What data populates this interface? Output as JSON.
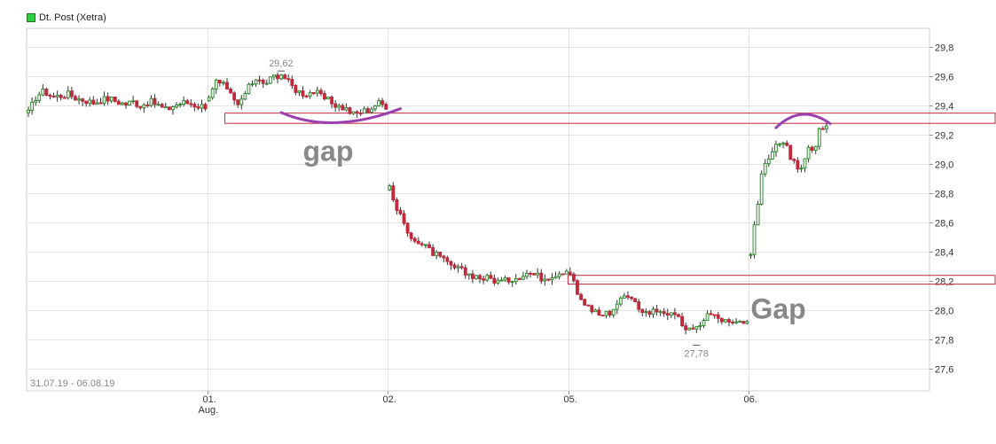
{
  "legend": {
    "label": "Dt. Post (Xetra)",
    "swatch_color": "#2ecc40"
  },
  "date_range": "31.07.19 - 06.08.19",
  "annotations": {
    "gap_upper": "gap",
    "gap_lower": "Gap",
    "high_label": "29,62",
    "low_label": "27,78"
  },
  "colors": {
    "up_candle": "#2e8b2e",
    "down_candle": "#c0283c",
    "gap_box": "#c0283c",
    "arc": "#9b3fb0",
    "grid": "#e4e4e4",
    "axis_text": "#333333",
    "annotation_text": "#888888"
  },
  "chart_data": {
    "type": "candlestick",
    "title": "",
    "ylim": [
      27.45,
      29.93
    ],
    "y_ticks": [
      "29,8",
      "29,6",
      "29,4",
      "29,2",
      "29,0",
      "28,8",
      "28,6",
      "28,4",
      "28,2",
      "28,0",
      "27,8",
      "27,6"
    ],
    "y_tick_values": [
      29.8,
      29.6,
      29.4,
      29.2,
      29.0,
      28.8,
      28.6,
      28.4,
      28.2,
      28.0,
      27.8,
      27.6
    ],
    "x_ticks": [
      {
        "label": "01.",
        "sublabel": "Aug.",
        "index": 50
      },
      {
        "label": "02.",
        "sublabel": "",
        "index": 100
      },
      {
        "label": "05.",
        "sublabel": "",
        "index": 150
      },
      {
        "label": "06.",
        "sublabel": "",
        "index": 200
      }
    ],
    "total_slots": 250,
    "grid": true,
    "legend_position": "top-left",
    "high": {
      "value": 29.62,
      "index": 70,
      "label": "29,62"
    },
    "low": {
      "value": 27.78,
      "index": 185,
      "label": "27,78"
    },
    "gap_zones": [
      {
        "from": 29.28,
        "to": 29.35,
        "start_index": 55
      },
      {
        "from": 28.18,
        "to": 28.24,
        "start_index": 150
      }
    ],
    "segments": [
      {
        "start_index": 0,
        "count": 50,
        "path": [
          29.35,
          29.47,
          29.5,
          29.46,
          29.47,
          29.48,
          29.45,
          29.44,
          29.42,
          29.44,
          29.45,
          29.43,
          29.41,
          29.43,
          29.4,
          29.43,
          29.41,
          29.37,
          29.4,
          29.42,
          29.42,
          29.4,
          29.4
        ]
      },
      {
        "start_index": 50,
        "count": 50,
        "path": [
          29.45,
          29.57,
          29.53,
          29.45,
          29.42,
          29.55,
          29.57,
          29.55,
          29.6,
          29.62,
          29.55,
          29.5,
          29.48,
          29.5,
          29.46,
          29.43,
          29.4,
          29.38,
          29.34,
          29.36,
          29.38,
          29.42,
          29.4
        ]
      },
      {
        "start_index": 100,
        "count": 50,
        "path": [
          28.83,
          28.68,
          28.58,
          28.5,
          28.45,
          28.42,
          28.38,
          28.34,
          28.3,
          28.28,
          28.25,
          28.24,
          28.22,
          28.22,
          28.2,
          28.2,
          28.22,
          28.24,
          28.26,
          28.24,
          28.22,
          28.24,
          28.26,
          28.28
        ]
      },
      {
        "start_index": 150,
        "count": 50,
        "path": [
          28.25,
          28.1,
          28.02,
          28.0,
          27.95,
          27.98,
          28.04,
          28.1,
          28.06,
          28.02,
          27.98,
          28.0,
          28.0,
          27.97,
          27.94,
          27.88,
          27.85,
          27.92,
          27.98,
          27.95,
          27.93,
          27.9,
          27.92,
          27.9
        ]
      },
      {
        "start_index": 200,
        "count": 22,
        "path": [
          28.38,
          28.7,
          29.0,
          29.05,
          29.12,
          29.18,
          29.08,
          29.0,
          28.98,
          29.12,
          29.08,
          29.25,
          29.28
        ]
      }
    ]
  }
}
